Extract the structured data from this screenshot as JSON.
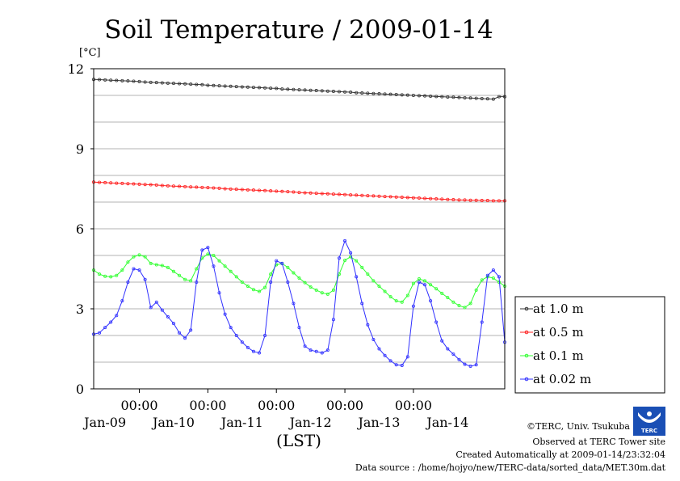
{
  "chart_data": {
    "type": "line",
    "title": "Soil Temperature / 2009-01-14",
    "unit_label": "[°C]",
    "xlabel": "(LST)",
    "ylim": [
      0,
      12
    ],
    "y_ticks": [
      "0",
      "3",
      "6",
      "9",
      "12"
    ],
    "x_time_ticks": [
      "00:00",
      "00:00",
      "00:00",
      "00:00",
      "00:00"
    ],
    "x_date_labels": [
      "Jan-09",
      "Jan-10",
      "Jan-11",
      "Jan-12",
      "Jan-13",
      "Jan-14"
    ],
    "grid": true,
    "legend_position": "right",
    "x_hours": [
      0,
      2,
      4,
      6,
      8,
      10,
      12,
      14,
      16,
      18,
      20,
      22,
      24,
      26,
      28,
      30,
      32,
      34,
      36,
      38,
      40,
      42,
      44,
      46,
      48,
      50,
      52,
      54,
      56,
      58,
      60,
      62,
      64,
      66,
      68,
      70,
      72,
      74,
      76,
      78,
      80,
      82,
      84,
      86,
      88,
      90,
      92,
      94,
      96,
      98,
      100,
      102,
      104,
      106,
      108,
      110,
      112,
      114,
      116,
      118,
      120,
      122,
      124,
      126,
      128,
      130,
      132,
      134,
      136,
      138,
      140,
      142,
      144
    ],
    "series": [
      {
        "name": "at 1.0 m",
        "color": "#333333",
        "values": [
          11.6,
          11.59,
          11.58,
          11.57,
          11.56,
          11.55,
          11.54,
          11.53,
          11.52,
          11.5,
          11.49,
          11.48,
          11.47,
          11.46,
          11.45,
          11.44,
          11.43,
          11.42,
          11.41,
          11.4,
          11.38,
          11.37,
          11.36,
          11.35,
          11.34,
          11.33,
          11.32,
          11.31,
          11.3,
          11.29,
          11.28,
          11.27,
          11.26,
          11.24,
          11.23,
          11.22,
          11.21,
          11.2,
          11.19,
          11.18,
          11.17,
          11.16,
          11.15,
          11.14,
          11.13,
          11.12,
          11.1,
          11.09,
          11.08,
          11.07,
          11.06,
          11.05,
          11.04,
          11.03,
          11.02,
          11.01,
          11.0,
          10.99,
          10.98,
          10.97,
          10.96,
          10.95,
          10.94,
          10.93,
          10.92,
          10.91,
          10.9,
          10.89,
          10.88,
          10.87,
          10.86,
          10.95,
          10.95
        ]
      },
      {
        "name": "at 0.5 m",
        "color": "#ff2020",
        "values": [
          7.75,
          7.74,
          7.73,
          7.72,
          7.71,
          7.7,
          7.69,
          7.68,
          7.67,
          7.66,
          7.65,
          7.64,
          7.62,
          7.61,
          7.6,
          7.59,
          7.58,
          7.57,
          7.56,
          7.55,
          7.54,
          7.53,
          7.52,
          7.5,
          7.49,
          7.48,
          7.47,
          7.46,
          7.45,
          7.44,
          7.43,
          7.42,
          7.41,
          7.4,
          7.39,
          7.38,
          7.36,
          7.35,
          7.34,
          7.33,
          7.32,
          7.31,
          7.3,
          7.29,
          7.28,
          7.27,
          7.26,
          7.25,
          7.24,
          7.23,
          7.22,
          7.21,
          7.2,
          7.19,
          7.18,
          7.17,
          7.16,
          7.15,
          7.14,
          7.13,
          7.12,
          7.11,
          7.1,
          7.09,
          7.08,
          7.08,
          7.07,
          7.07,
          7.06,
          7.06,
          7.05,
          7.05,
          7.05
        ]
      },
      {
        "name": "at 0.1 m",
        "color": "#30ff30",
        "values": [
          4.45,
          4.3,
          4.22,
          4.2,
          4.25,
          4.45,
          4.75,
          4.95,
          5.02,
          4.95,
          4.7,
          4.65,
          4.62,
          4.55,
          4.4,
          4.25,
          4.1,
          4.05,
          4.5,
          4.9,
          5.05,
          5.0,
          4.8,
          4.6,
          4.4,
          4.2,
          4.0,
          3.85,
          3.72,
          3.65,
          3.8,
          4.3,
          4.65,
          4.7,
          4.55,
          4.35,
          4.15,
          3.98,
          3.82,
          3.7,
          3.6,
          3.55,
          3.7,
          4.3,
          4.82,
          4.95,
          4.8,
          4.55,
          4.3,
          4.05,
          3.85,
          3.65,
          3.45,
          3.3,
          3.25,
          3.5,
          3.95,
          4.12,
          4.05,
          3.9,
          3.75,
          3.58,
          3.42,
          3.25,
          3.12,
          3.05,
          3.2,
          3.7,
          4.08,
          4.2,
          4.15,
          4.0,
          3.85
        ]
      },
      {
        "name": "at 0.02 m",
        "color": "#3030ff",
        "values": [
          2.05,
          2.1,
          2.3,
          2.5,
          2.75,
          3.3,
          4.0,
          4.5,
          4.45,
          4.1,
          3.05,
          3.25,
          2.95,
          2.7,
          2.45,
          2.1,
          1.9,
          2.2,
          4.0,
          5.2,
          5.3,
          4.6,
          3.6,
          2.8,
          2.3,
          2.0,
          1.75,
          1.55,
          1.4,
          1.35,
          2.0,
          4.0,
          4.8,
          4.7,
          4.0,
          3.2,
          2.3,
          1.6,
          1.45,
          1.4,
          1.35,
          1.45,
          2.6,
          4.9,
          5.55,
          5.1,
          4.2,
          3.2,
          2.4,
          1.85,
          1.5,
          1.25,
          1.05,
          0.9,
          0.88,
          1.2,
          3.1,
          4.0,
          3.9,
          3.3,
          2.5,
          1.8,
          1.5,
          1.3,
          1.1,
          0.92,
          0.85,
          0.9,
          2.5,
          4.25,
          4.45,
          4.2,
          1.75
        ]
      }
    ]
  },
  "credits": {
    "copyright": "©TERC, Univ. Tsukuba",
    "site": "Observed at TERC Tower site",
    "created": "Created Automatically at 2009-01-14/23:32:04",
    "source": "Data source : /home/hojyo/new/TERC-data/sorted_data/MET.30m.dat",
    "logo_text": "TERC"
  }
}
